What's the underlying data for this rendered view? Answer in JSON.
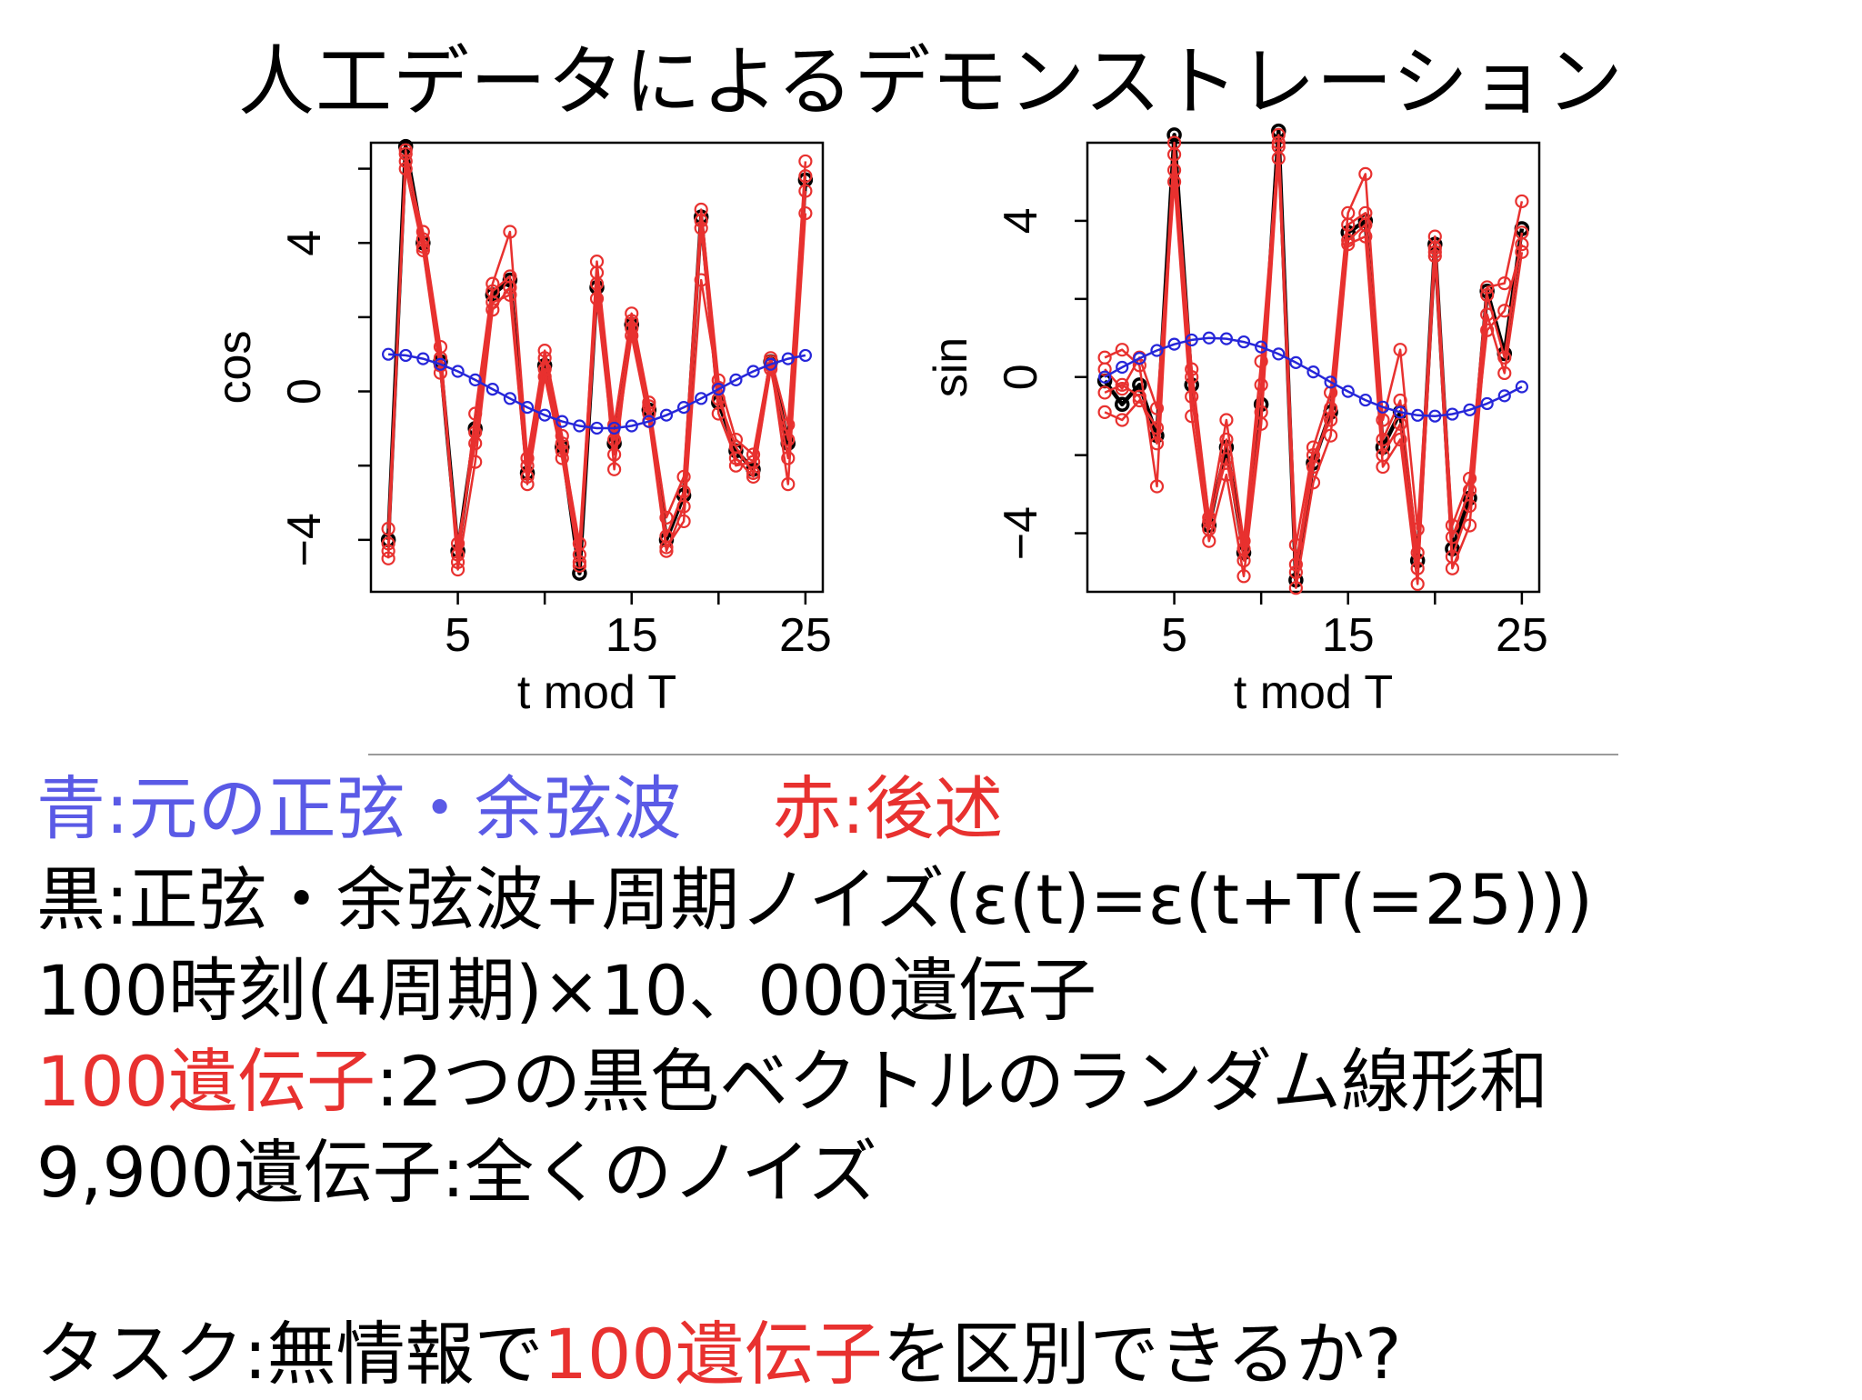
{
  "title": "人工データによるデモンストレーション",
  "legend": {
    "blue_label": "青:元の正弦・余弦波",
    "red_label": "赤:後述"
  },
  "lines": {
    "black_desc": "黒:正弦・余弦波+周期ノイズ(ε(t)=ε(t+T(=25)))",
    "time_genes": "100時刻(4周期)×10、000遺伝子",
    "genes100_red": "100遺伝子",
    "genes100_rest": ":2つの黒色ベクトルのランダム線形和",
    "genes9900": "9,900遺伝子:全くのノイズ",
    "task_a": "タスク:無情報で",
    "task_red": "100遺伝子",
    "task_b": "を区別できるか?"
  },
  "colors": {
    "black": "#000000",
    "red": "#e8312f",
    "blue": "#2626d9",
    "text_blue": "#5a5ae6"
  },
  "chart_data": [
    {
      "type": "line",
      "title": "",
      "xlabel": "t mod T",
      "ylabel": "cos",
      "xlim": [
        0,
        26
      ],
      "ylim": [
        -5.4,
        6.7
      ],
      "xticks": [
        5,
        10,
        15,
        20,
        25
      ],
      "xtick_labels": [
        "5",
        "",
        "15",
        "",
        "25"
      ],
      "yticks": [
        -4,
        -2,
        0,
        2,
        4,
        6
      ],
      "ytick_labels": [
        "−4",
        "",
        "0",
        "",
        "4",
        ""
      ],
      "x": [
        1,
        2,
        3,
        4,
        5,
        6,
        7,
        8,
        9,
        10,
        11,
        12,
        13,
        14,
        15,
        16,
        17,
        18,
        19,
        20,
        21,
        22,
        23,
        24,
        25
      ],
      "series": [
        {
          "color": "black",
          "values": [
            -4.0,
            6.6,
            4.0,
            0.8,
            -4.3,
            -1.0,
            2.6,
            3.0,
            -2.2,
            0.7,
            -1.5,
            -4.9,
            2.8,
            -1.4,
            1.8,
            -0.5,
            -4.0,
            -2.8,
            4.7,
            -0.3,
            -1.6,
            -2.1,
            0.8,
            -1.4,
            5.7
          ]
        },
        {
          "color": "red",
          "values": [
            -4.3,
            6.2,
            4.3,
            1.2,
            -4.6,
            -0.6,
            2.9,
            4.3,
            -1.8,
            1.1,
            -1.2,
            -4.4,
            3.5,
            -0.9,
            2.1,
            -0.3,
            -3.4,
            -2.3,
            4.9,
            0.3,
            -1.3,
            -1.7,
            0.9,
            -0.9,
            6.2
          ]
        },
        {
          "color": "red",
          "values": [
            -3.7,
            6.0,
            3.8,
            0.5,
            -4.1,
            -1.4,
            2.4,
            2.6,
            -2.5,
            0.4,
            -1.8,
            -4.7,
            2.5,
            -1.7,
            1.5,
            -0.8,
            -4.3,
            -3.1,
            4.4,
            -0.6,
            -1.8,
            -2.3,
            0.6,
            -1.8,
            5.4
          ]
        },
        {
          "color": "red",
          "values": [
            -4.5,
            6.4,
            4.1,
            0.9,
            -4.8,
            -1.9,
            2.2,
            2.8,
            -2.0,
            0.9,
            -1.4,
            -4.1,
            3.2,
            -2.1,
            1.9,
            -0.4,
            -4.2,
            -3.5,
            3.0,
            0.1,
            -2.0,
            -1.9,
            0.8,
            -2.5,
            4.8
          ]
        },
        {
          "color": "red",
          "values": [
            -4.1,
            6.5,
            3.9,
            0.7,
            -4.4,
            -1.1,
            2.7,
            3.1,
            -2.3,
            0.6,
            -1.6,
            -4.6,
            2.9,
            -1.3,
            1.7,
            -0.6,
            -3.9,
            -2.7,
            4.6,
            -0.2,
            -1.5,
            -2.2,
            0.7,
            -1.3,
            5.8
          ]
        },
        {
          "color": "blue",
          "values": [
            1.0,
            0.97,
            0.88,
            0.73,
            0.54,
            0.31,
            0.06,
            -0.19,
            -0.43,
            -0.64,
            -0.81,
            -0.93,
            -0.99,
            -0.99,
            -0.93,
            -0.81,
            -0.64,
            -0.43,
            -0.19,
            0.06,
            0.31,
            0.54,
            0.73,
            0.88,
            0.97
          ]
        }
      ]
    },
    {
      "type": "line",
      "title": "",
      "xlabel": "t mod T",
      "ylabel": "sin",
      "xlim": [
        0,
        26
      ],
      "ylim": [
        -5.5,
        6.0
      ],
      "xticks": [
        5,
        10,
        15,
        20,
        25
      ],
      "xtick_labels": [
        "5",
        "",
        "15",
        "",
        "25"
      ],
      "yticks": [
        -4,
        -2,
        0,
        2,
        4
      ],
      "ytick_labels": [
        "−4",
        "",
        "0",
        "",
        "4"
      ],
      "x": [
        1,
        2,
        3,
        4,
        5,
        6,
        7,
        8,
        9,
        10,
        11,
        12,
        13,
        14,
        15,
        16,
        17,
        18,
        19,
        20,
        21,
        22,
        23,
        24,
        25
      ],
      "series": [
        {
          "color": "black",
          "values": [
            -0.1,
            -0.7,
            -0.2,
            -1.5,
            6.2,
            -0.2,
            -3.8,
            -1.8,
            -4.5,
            -0.7,
            6.3,
            -5.2,
            -2.2,
            -0.9,
            3.7,
            4.0,
            -1.8,
            -0.9,
            -4.7,
            3.4,
            -4.4,
            -3.1,
            2.2,
            0.6,
            3.8
          ]
        },
        {
          "color": "red",
          "values": [
            0.5,
            0.7,
            0.3,
            -2.8,
            5.7,
            0.2,
            -3.6,
            -1.1,
            -4.2,
            0.4,
            5.9,
            -4.3,
            -1.8,
            -0.4,
            4.2,
            5.2,
            -1.1,
            0.7,
            -3.9,
            3.2,
            -3.8,
            -2.6,
            2.3,
            2.4,
            4.5
          ]
        },
        {
          "color": "red",
          "values": [
            -0.9,
            -1.1,
            -0.6,
            -1.3,
            5.0,
            -1.0,
            -4.2,
            -2.5,
            -5.1,
            -1.2,
            5.6,
            -5.4,
            -2.7,
            -1.5,
            3.4,
            3.6,
            -2.3,
            -1.6,
            -5.3,
            3.1,
            -4.9,
            -3.8,
            1.6,
            0.1,
            3.2
          ]
        },
        {
          "color": "red",
          "values": [
            0.2,
            -0.3,
            0.5,
            -0.8,
            5.3,
            0.0,
            -3.7,
            -2.1,
            -4.4,
            -0.2,
            6.0,
            -4.8,
            -2.0,
            -1.1,
            3.9,
            4.2,
            -1.6,
            -0.6,
            -4.5,
            3.6,
            -4.1,
            -2.9,
            1.2,
            1.7,
            3.4
          ]
        },
        {
          "color": "red",
          "values": [
            -0.4,
            -0.2,
            -0.5,
            -1.7,
            6.0,
            -0.5,
            -3.9,
            -1.6,
            -4.7,
            -0.9,
            6.2,
            -5.0,
            -2.3,
            -0.8,
            3.5,
            3.9,
            -2.0,
            -1.2,
            -4.9,
            3.3,
            -4.6,
            -3.3,
            2.1,
            0.5,
            3.7
          ]
        },
        {
          "color": "blue",
          "values": [
            0.0,
            0.25,
            0.48,
            0.68,
            0.84,
            0.95,
            1.0,
            0.98,
            0.9,
            0.77,
            0.59,
            0.37,
            0.13,
            -0.13,
            -0.37,
            -0.59,
            -0.77,
            -0.9,
            -0.98,
            -1.0,
            -0.95,
            -0.84,
            -0.68,
            -0.48,
            -0.25
          ]
        }
      ]
    }
  ]
}
